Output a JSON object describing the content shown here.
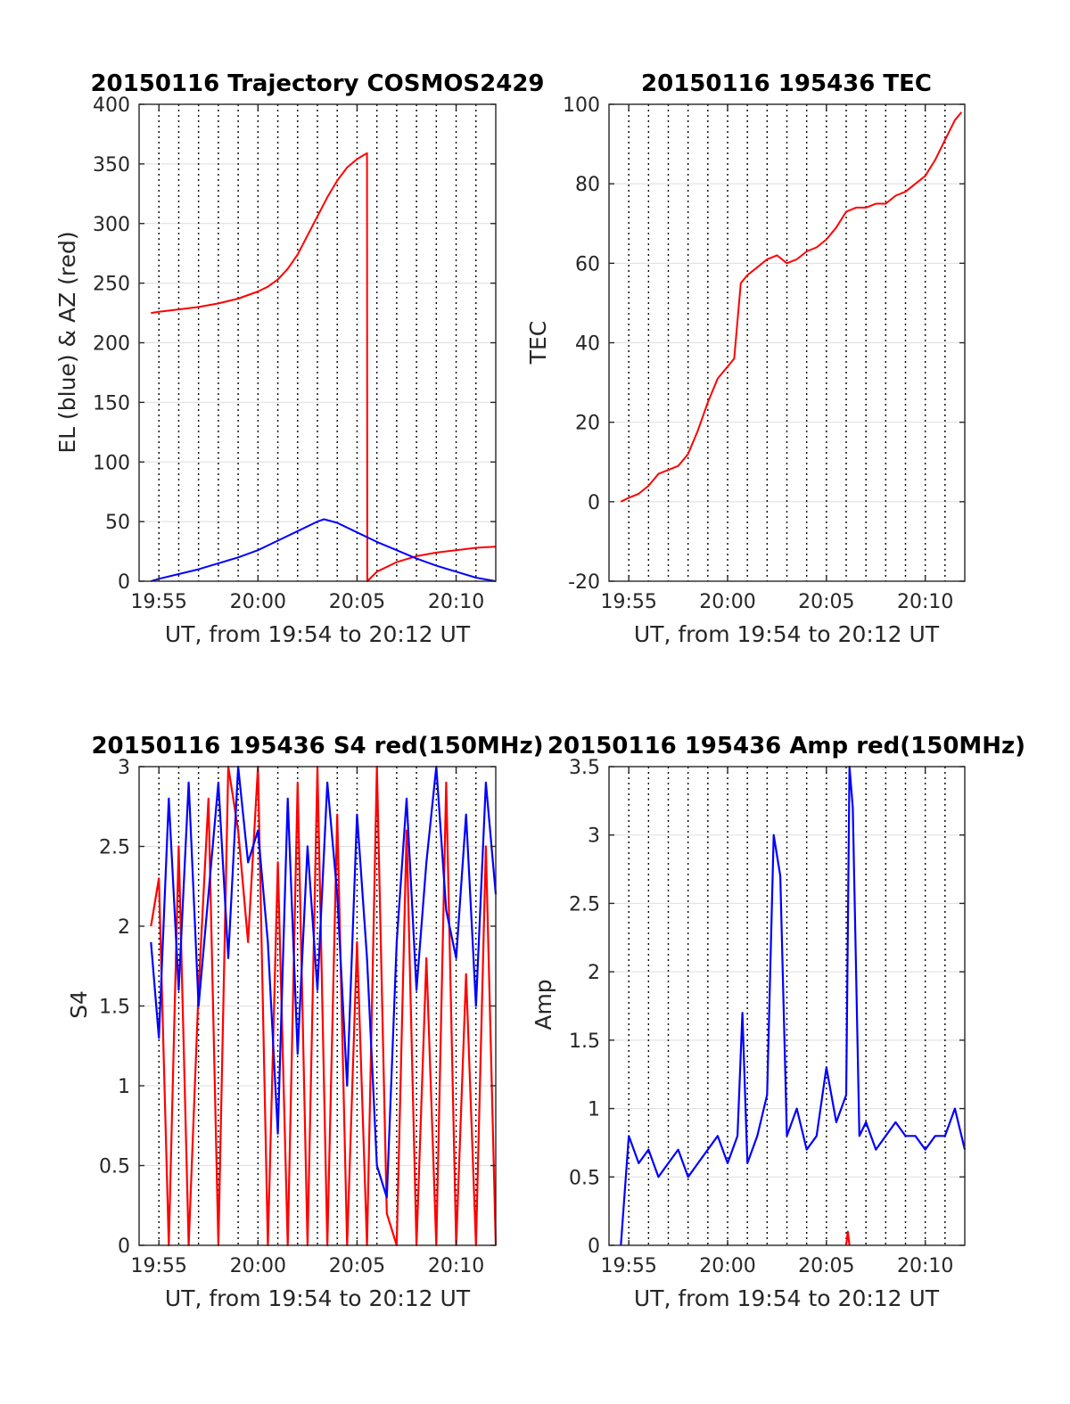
{
  "chart_data": [
    {
      "type": "line",
      "title": "20150116 Trajectory COSMOS2429",
      "xlabel": "UT, from 19:54 to 20:12 UT",
      "ylabel": "EL (blue) & AZ (red)",
      "xlim": [
        "19:54",
        "20:12"
      ],
      "ylim": [
        0,
        400
      ],
      "xticks": [
        "19:55",
        "20:00",
        "20:05",
        "20:10"
      ],
      "yticks": [
        "0",
        "50",
        "100",
        "150",
        "200",
        "250",
        "300",
        "350",
        "400"
      ],
      "grid": true,
      "colors": {
        "AZ": "#ff0000",
        "EL": "#0000ff"
      },
      "series": [
        {
          "color": "#ff0000",
          "x": [
            "19:54:36",
            "19:55",
            "19:56",
            "19:57",
            "19:58",
            "19:59",
            "20:00",
            "20:00:30",
            "20:01",
            "20:01:30",
            "20:02",
            "20:02:30",
            "20:03",
            "20:03:30",
            "20:04",
            "20:04:30",
            "20:05",
            "20:05:30",
            "20:05:31",
            "20:06",
            "20:07",
            "20:08",
            "20:09",
            "20:10",
            "20:11",
            "20:12"
          ],
          "values": [
            225,
            226,
            228,
            230,
            233,
            237,
            243,
            247,
            253,
            262,
            274,
            290,
            306,
            322,
            336,
            347,
            354,
            359,
            0,
            8,
            16,
            21,
            24,
            26,
            28,
            29
          ]
        },
        {
          "color": "#0000ff",
          "x": [
            "19:54:36",
            "19:55",
            "19:56",
            "19:57",
            "19:58",
            "19:59",
            "20:00",
            "20:01",
            "20:02",
            "20:03",
            "20:03:20",
            "20:04",
            "20:05",
            "20:06",
            "20:07",
            "20:08",
            "20:09",
            "20:10",
            "20:11",
            "20:12"
          ],
          "values": [
            0,
            2,
            6,
            10,
            15,
            20,
            26,
            34,
            42,
            50,
            52,
            49,
            41,
            33,
            26,
            19,
            13,
            8,
            3,
            0
          ]
        }
      ]
    },
    {
      "type": "line",
      "title": "20150116 195436 TEC",
      "xlabel": "UT, from 19:54 to 20:12 UT",
      "ylabel": "TEC",
      "xlim": [
        "19:54",
        "20:12"
      ],
      "ylim": [
        -20,
        100
      ],
      "xticks": [
        "19:55",
        "20:00",
        "20:05",
        "20:10"
      ],
      "yticks": [
        "-20",
        "0",
        "20",
        "40",
        "60",
        "80",
        "100"
      ],
      "grid": true,
      "series": [
        {
          "color": "#ff0000",
          "x": [
            "19:54:36",
            "19:55",
            "19:55:30",
            "19:56",
            "19:56:30",
            "19:57",
            "19:57:30",
            "19:58",
            "19:58:30",
            "19:59",
            "19:59:30",
            "20:00",
            "20:00:20",
            "20:00:40",
            "20:01",
            "20:01:30",
            "20:02",
            "20:02:30",
            "20:03",
            "20:03:30",
            "20:04",
            "20:04:30",
            "20:05",
            "20:05:30",
            "20:06",
            "20:06:30",
            "20:07",
            "20:07:30",
            "20:08",
            "20:08:30",
            "20:09",
            "20:09:30",
            "20:10",
            "20:10:30",
            "20:11",
            "20:11:30",
            "20:11:50"
          ],
          "values": [
            0,
            1,
            2,
            4,
            7,
            8,
            9,
            12,
            18,
            25,
            31,
            34,
            36,
            55,
            57,
            59,
            61,
            62,
            60,
            61,
            63,
            64,
            66,
            69,
            73,
            74,
            74,
            75,
            75,
            77,
            78,
            80,
            82,
            86,
            91,
            96,
            98
          ]
        }
      ]
    },
    {
      "type": "line",
      "title": "20150116 195436 S4 red(150MHz)",
      "xlabel": "UT, from 19:54 to 20:12 UT",
      "ylabel": "S4",
      "xlim": [
        "19:54",
        "20:12"
      ],
      "ylim": [
        0,
        3
      ],
      "xticks": [
        "19:55",
        "20:00",
        "20:05",
        "20:10"
      ],
      "yticks": [
        "0",
        "0.5",
        "1",
        "1.5",
        "2",
        "2.5",
        "3"
      ],
      "grid": true,
      "series": [
        {
          "color": "#ff0000",
          "x": [
            "19:54:36",
            "19:55",
            "19:55:30",
            "19:56",
            "19:56:30",
            "19:57",
            "19:57:30",
            "19:58",
            "19:58:30",
            "19:59",
            "19:59:30",
            "20:00",
            "20:00:30",
            "20:01",
            "20:01:30",
            "20:02",
            "20:02:30",
            "20:03",
            "20:03:30",
            "20:04",
            "20:04:30",
            "20:05",
            "20:05:30",
            "20:06",
            "20:06:30",
            "20:07",
            "20:07:30",
            "20:08",
            "20:08:30",
            "20:09",
            "20:09:30",
            "20:10",
            "20:10:30",
            "20:11",
            "20:11:30",
            "20:12"
          ],
          "values": [
            2.0,
            2.3,
            0.0,
            2.5,
            0.0,
            1.6,
            2.8,
            0.0,
            3.0,
            2.6,
            1.9,
            3.0,
            0.0,
            2.4,
            0.0,
            2.9,
            0.0,
            3.0,
            0.0,
            2.7,
            0.0,
            1.9,
            0.0,
            3.0,
            0.2,
            0.0,
            2.6,
            0.0,
            1.8,
            0.0,
            2.9,
            0.0,
            1.7,
            0.0,
            2.5,
            0.0
          ]
        },
        {
          "color": "#0000ff",
          "x": [
            "19:54:36",
            "19:55",
            "19:55:30",
            "19:56",
            "19:56:30",
            "19:57",
            "19:57:30",
            "19:58",
            "19:58:30",
            "19:59",
            "19:59:30",
            "20:00",
            "20:00:30",
            "20:01",
            "20:01:30",
            "20:02",
            "20:02:30",
            "20:03",
            "20:03:30",
            "20:04",
            "20:04:30",
            "20:05",
            "20:05:30",
            "20:06",
            "20:06:30",
            "20:07",
            "20:07:30",
            "20:08",
            "20:08:30",
            "20:09",
            "20:09:30",
            "20:10",
            "20:10:30",
            "20:11",
            "20:11:30",
            "20:12"
          ],
          "values": [
            1.9,
            1.3,
            2.8,
            1.6,
            2.9,
            1.5,
            2.2,
            2.9,
            1.8,
            3.0,
            2.4,
            2.6,
            1.9,
            0.7,
            2.8,
            1.2,
            2.5,
            1.6,
            2.9,
            2.2,
            1.0,
            2.7,
            1.8,
            0.5,
            0.3,
            1.9,
            2.8,
            1.6,
            2.4,
            3.0,
            2.1,
            1.8,
            2.7,
            1.5,
            2.9,
            2.2
          ]
        }
      ]
    },
    {
      "type": "line",
      "title": "20150116 195436 Amp red(150MHz)",
      "xlabel": "UT, from 19:54 to 20:12 UT",
      "ylabel": "Amp",
      "xlim": [
        "19:54",
        "20:12"
      ],
      "ylim": [
        0,
        3.5
      ],
      "xticks": [
        "19:55",
        "20:00",
        "20:05",
        "20:10"
      ],
      "yticks": [
        "0",
        "0.5",
        "1",
        "1.5",
        "2",
        "2.5",
        "3",
        "3.5"
      ],
      "grid": true,
      "series": [
        {
          "color": "#ff0000",
          "x": [
            "20:06:00",
            "20:06:05",
            "20:06:10"
          ],
          "values": [
            0,
            0.1,
            0
          ]
        },
        {
          "color": "#0000ff",
          "x": [
            "19:54:36",
            "19:55",
            "19:55:30",
            "19:56",
            "19:56:30",
            "19:57",
            "19:57:30",
            "19:58",
            "19:58:30",
            "19:59",
            "19:59:30",
            "20:00",
            "20:00:30",
            "20:00:45",
            "20:01",
            "20:01:30",
            "20:02",
            "20:02:20",
            "20:02:40",
            "20:03",
            "20:03:30",
            "20:04",
            "20:04:30",
            "20:05",
            "20:05:30",
            "20:06",
            "20:06:10",
            "20:06:20",
            "20:06:40",
            "20:07",
            "20:07:30",
            "20:08",
            "20:08:30",
            "20:09",
            "20:09:30",
            "20:10",
            "20:10:30",
            "20:11",
            "20:11:30",
            "20:12"
          ],
          "values": [
            0.0,
            0.8,
            0.6,
            0.7,
            0.5,
            0.6,
            0.7,
            0.5,
            0.6,
            0.7,
            0.8,
            0.6,
            0.8,
            1.7,
            0.6,
            0.8,
            1.1,
            3.0,
            2.7,
            0.8,
            1.0,
            0.7,
            0.8,
            1.3,
            0.9,
            1.1,
            3.5,
            3.2,
            0.8,
            0.9,
            0.7,
            0.8,
            0.9,
            0.8,
            0.8,
            0.7,
            0.8,
            0.8,
            1.0,
            0.7
          ]
        }
      ]
    }
  ]
}
